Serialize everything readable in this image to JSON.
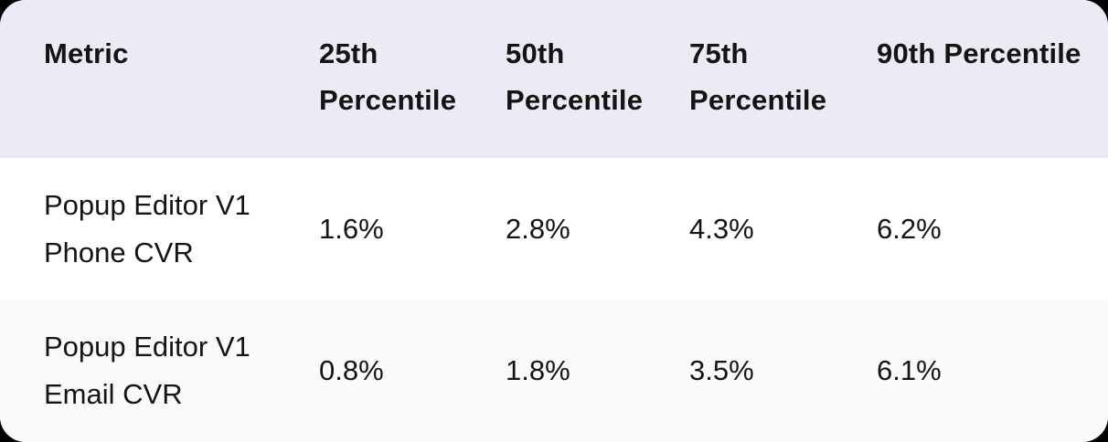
{
  "chart_data": {
    "type": "table",
    "columns": [
      "Metric",
      "25th Percentile",
      "50th Percentile",
      "75th Percentile",
      "90th Percentile"
    ],
    "rows": [
      {
        "metric": "Popup Editor V1 Phone CVR",
        "values": [
          "1.6%",
          "2.8%",
          "4.3%",
          "6.2%"
        ]
      },
      {
        "metric": "Popup Editor V1 Email CVR",
        "values": [
          "0.8%",
          "1.8%",
          "3.5%",
          "6.1%"
        ]
      }
    ]
  },
  "colors": {
    "header_bg": "#EBEAF5",
    "row_bg": "#FFFFFF",
    "row_alt_bg": "#FAFAFB",
    "text": "#141414",
    "page_bg": "#000000"
  }
}
